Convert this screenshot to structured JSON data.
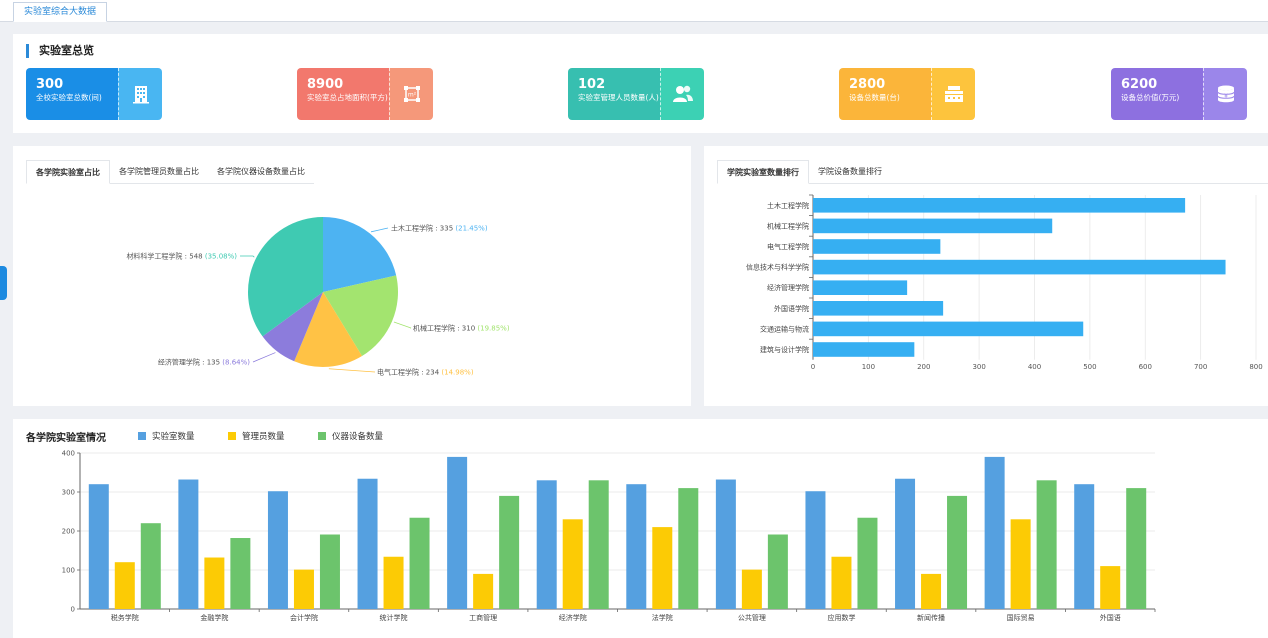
{
  "top_tab": "实验室综合大数据",
  "overview": {
    "title": "实验室总览",
    "stats": [
      {
        "value": "300",
        "label": "全校实验室总数(间)",
        "icon": "building-icon",
        "c1": "#1a8ee6",
        "c2": "#49b6f2"
      },
      {
        "value": "8900",
        "label": "实验室总占地面积(平方)",
        "icon": "area-icon",
        "c1": "#f2786d",
        "c2": "#f5987a"
      },
      {
        "value": "102",
        "label": "实验室管理人员数量(人)",
        "icon": "users-icon",
        "c1": "#37bfb0",
        "c2": "#3cd1b4"
      },
      {
        "value": "2800",
        "label": "设备总数量(台)",
        "icon": "device-icon",
        "c1": "#fbb53a",
        "c2": "#fdc43d"
      },
      {
        "value": "6200",
        "label": "设备总价值(万元)",
        "icon": "coins-icon",
        "c1": "#8d70e0",
        "c2": "#9b86ea"
      }
    ]
  },
  "pie_panel": {
    "tabs": [
      "各学院实验室占比",
      "各学院管理员数量占比",
      "各学院仪器设备数量占比"
    ]
  },
  "bar_panel": {
    "tabs": [
      "学院实验室数量排行",
      "学院设备数量排行"
    ]
  },
  "bottom_panel": {
    "title": "各学院实验室情况",
    "legend": [
      "实验室数量",
      "管理员数量",
      "仪器设备数量"
    ]
  },
  "chart_data": [
    {
      "type": "pie",
      "slices": [
        {
          "name": "土木工程学院",
          "value": 335,
          "percent": "21.45%",
          "color": "#4db3f2"
        },
        {
          "name": "机械工程学院",
          "value": 310,
          "percent": "19.85%",
          "color": "#a3e46f"
        },
        {
          "name": "电气工程学院",
          "value": 234,
          "percent": "14.98%",
          "color": "#ffc245"
        },
        {
          "name": "经济管理学院",
          "value": 135,
          "percent": "8.64%",
          "color": "#8c7cdc"
        },
        {
          "name": "材料科学工程学院",
          "value": 548,
          "percent": "35.08%",
          "color": "#3fcab2"
        }
      ]
    },
    {
      "type": "bar",
      "orientation": "horizontal",
      "categories": [
        "土木工程学院",
        "机械工程学院",
        "电气工程学院",
        "信息技术与科学学院",
        "经济管理学院",
        "外国语学院",
        "交通运输与物流",
        "建筑与设计学院"
      ],
      "values": [
        672,
        432,
        230,
        745,
        170,
        235,
        488,
        183
      ],
      "xlim": [
        0,
        800
      ],
      "xticks": [
        0,
        100,
        200,
        300,
        400,
        500,
        600,
        700,
        800
      ],
      "color": "#36aff2"
    },
    {
      "type": "bar",
      "categories": [
        "税务学院",
        "金融学院",
        "会计学院",
        "统计学院",
        "工商管理",
        "经济学院",
        "法学院",
        "公共管理",
        "应用数学",
        "新闻传播",
        "国际贸易",
        "外国语"
      ],
      "series": [
        {
          "name": "实验室数量",
          "color": "#55a0e0",
          "values": [
            320,
            332,
            302,
            334,
            390,
            330,
            320,
            332,
            302,
            334,
            390,
            320
          ]
        },
        {
          "name": "管理员数量",
          "color": "#fccb05",
          "values": [
            120,
            132,
            101,
            134,
            90,
            230,
            210,
            101,
            134,
            90,
            230,
            110
          ]
        },
        {
          "name": "仪器设备数量",
          "color": "#6cc46c",
          "values": [
            220,
            182,
            191,
            234,
            290,
            330,
            310,
            191,
            234,
            290,
            330,
            310
          ]
        }
      ],
      "ylim": [
        0,
        400
      ],
      "yticks": [
        0,
        100,
        200,
        300,
        400
      ]
    }
  ]
}
